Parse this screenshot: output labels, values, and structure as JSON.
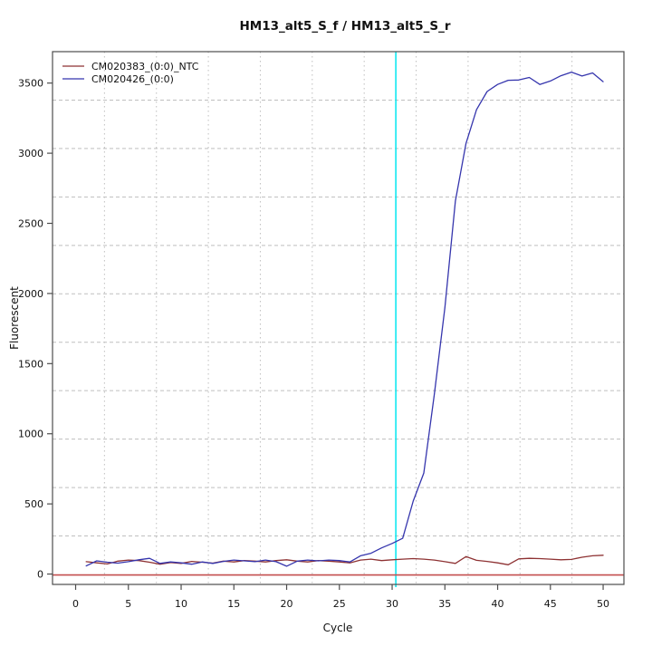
{
  "title": "HM13_alt5_S_f / HM13_alt5_S_r",
  "legend": {
    "entries": [
      {
        "label": "CM020383_(0:0)_NTC",
        "color": "#8e3233"
      },
      {
        "label": "CM020426_(0:0)",
        "color": "#3535ad"
      }
    ]
  },
  "chart_data": {
    "type": "line",
    "title": "HM13_alt5_S_f / HM13_alt5_S_r",
    "xlabel": "Cycle",
    "ylabel": "Fluorescent",
    "x_range": [
      -2.19,
      51.97
    ],
    "y_range": [
      -74,
      3724
    ],
    "x_ticks": [
      0,
      5,
      10,
      15,
      20,
      25,
      30,
      35,
      40,
      45,
      50
    ],
    "y_ticks": [
      0,
      500,
      1000,
      1500,
      2000,
      2500,
      3000,
      3500
    ],
    "grid": {
      "divisions": 11,
      "color": "#bfbfbf",
      "vertical_style": "dotted",
      "horizontal_style": "dashed"
    },
    "axis_color": "#4d4d4d",
    "x_start": 1,
    "series": [
      {
        "name": "CM020383_(0:0)_NTC",
        "color": "#8e3233",
        "values": [
          88,
          80,
          72,
          92,
          100,
          96,
          84,
          70,
          82,
          76,
          90,
          84,
          78,
          92,
          86,
          96,
          92,
          86,
          96,
          102,
          92,
          86,
          96,
          92,
          86,
          80,
          100,
          106,
          96,
          102,
          106,
          110,
          106,
          100,
          88,
          76,
          124,
          98,
          90,
          80,
          66,
          108,
          112,
          110,
          106,
          102,
          104,
          120,
          130,
          134
        ]
      },
      {
        "name": "CM020426_(0:0)",
        "color": "#3535ad",
        "values": [
          58,
          94,
          84,
          78,
          88,
          102,
          112,
          76,
          86,
          80,
          70,
          86,
          76,
          90,
          100,
          94,
          88,
          100,
          88,
          56,
          92,
          100,
          94,
          100,
          96,
          86,
          130,
          148,
          186,
          218,
          255,
          520,
          720,
          1280,
          1900,
          2660,
          3070,
          3310,
          3440,
          3490,
          3520,
          3522,
          3540,
          3490,
          3515,
          3552,
          3578,
          3550,
          3572,
          3510
        ]
      }
    ],
    "markers": {
      "ct_line": {
        "x": 30.35,
        "color": "#00e6ef"
      },
      "threshold": {
        "y": 0,
        "color": "#c34f4f"
      }
    },
    "legend_position": "top-left",
    "grid_on": true
  }
}
